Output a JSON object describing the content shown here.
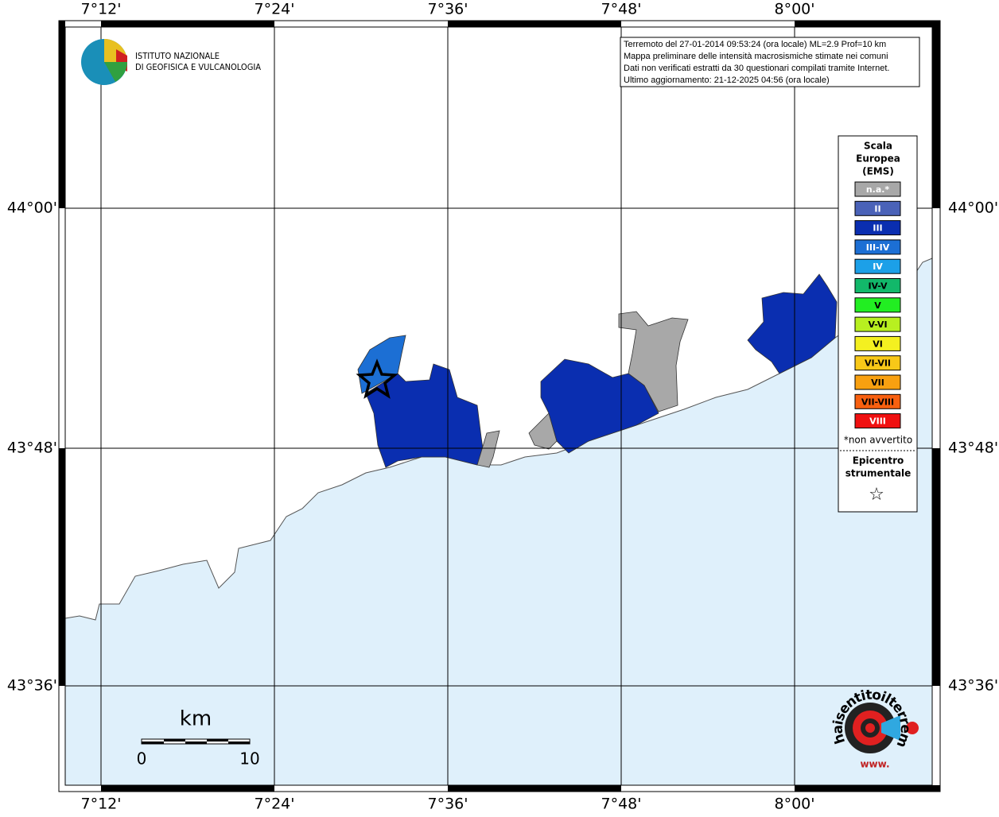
{
  "header": {
    "institute_line1": "ISTITUTO NAZIONALE",
    "institute_line2": "DI GEOFISICA E VULCANOLOGIA"
  },
  "info": {
    "lines": [
      "Terremoto del 27-01-2014 09:53:24 (ora locale) ML=2.9 Prof=10 km",
      "Mappa preliminare delle intensità macrosismiche stimate nei comuni",
      "Dati non verificati estratti da 30 questionari compilati tramite Internet.",
      "Ultimo aggiornamento: 21-12-2025 04:56 (ora locale)"
    ]
  },
  "map": {
    "lon_labels": [
      "7°12'",
      "7°24'",
      "7°36'",
      "7°48'",
      "8°00'"
    ],
    "lat_labels": [
      "44°00'",
      "43°48'",
      "43°36'"
    ]
  },
  "legend": {
    "title": [
      "Scala",
      "Europea",
      "(EMS)"
    ],
    "items": [
      {
        "label": "n.a.*",
        "color": "#a8a8a8",
        "text_color": "#ffffff"
      },
      {
        "label": "II",
        "color": "#4a62b8",
        "text_color": "#ffffff"
      },
      {
        "label": "III",
        "color": "#0a2eb0",
        "text_color": "#ffffff"
      },
      {
        "label": "III-IV",
        "color": "#1c6fd4",
        "text_color": "#ffffff"
      },
      {
        "label": "IV",
        "color": "#1ca0e8",
        "text_color": "#ffffff"
      },
      {
        "label": "IV-V",
        "color": "#12b86a",
        "text_color": "#000000"
      },
      {
        "label": "V",
        "color": "#22ee22",
        "text_color": "#000000"
      },
      {
        "label": "V-VI",
        "color": "#b8f020",
        "text_color": "#000000"
      },
      {
        "label": "VI",
        "color": "#f4f020",
        "text_color": "#000000"
      },
      {
        "label": "VI-VII",
        "color": "#f8c818",
        "text_color": "#000000"
      },
      {
        "label": "VII",
        "color": "#f8a010",
        "text_color": "#000000"
      },
      {
        "label": "VII-VIII",
        "color": "#f86010",
        "text_color": "#000000"
      },
      {
        "label": "VIII",
        "color": "#f01010",
        "text_color": "#ffffff"
      }
    ],
    "note": "*non avvertito",
    "epicenter_title": [
      "Epicentro",
      "strumentale"
    ],
    "epicenter_symbol": "☆"
  },
  "scale_bar": {
    "unit": "km",
    "labels": [
      "0",
      "10"
    ]
  },
  "footer_logo": {
    "text": "haisentitoilterremoto.it",
    "url_prefix": "www."
  }
}
